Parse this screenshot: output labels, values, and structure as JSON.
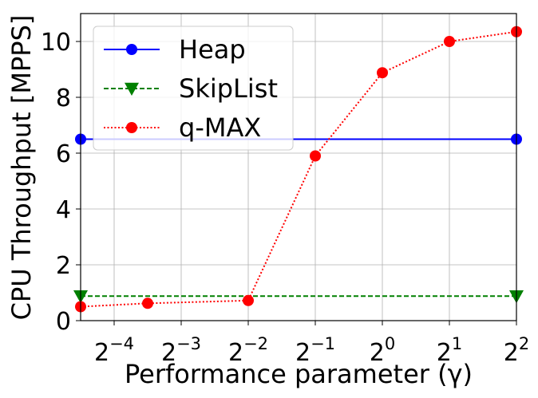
{
  "chart_data": {
    "type": "line",
    "title": "",
    "xlabel": "Performance parameter (γ)",
    "ylabel": "CPU Throughput [MPPS]",
    "x_scale": "log2",
    "xlim": [
      -4.5,
      2
    ],
    "ylim": [
      0,
      11
    ],
    "grid": true,
    "legend_position": "top-left",
    "x_ticks": [
      {
        "base": "2",
        "exp": "−4",
        "value": -4
      },
      {
        "base": "2",
        "exp": "−3",
        "value": -3
      },
      {
        "base": "2",
        "exp": "−2",
        "value": -2
      },
      {
        "base": "2",
        "exp": "−1",
        "value": -1
      },
      {
        "base": "2",
        "exp": "0",
        "value": 0
      },
      {
        "base": "2",
        "exp": "1",
        "value": 1
      },
      {
        "base": "2",
        "exp": "2",
        "value": 2
      }
    ],
    "y_ticks": [
      {
        "label": "0",
        "value": 0
      },
      {
        "label": "2",
        "value": 2
      },
      {
        "label": "4",
        "value": 4
      },
      {
        "label": "6",
        "value": 6
      },
      {
        "label": "8",
        "value": 8
      },
      {
        "label": "10",
        "value": 10
      }
    ],
    "series": [
      {
        "name": "Heap",
        "color": "#0000ff",
        "line": "solid",
        "marker": "circle",
        "x": [
          -4.5,
          2
        ],
        "y": [
          6.5,
          6.5
        ]
      },
      {
        "name": "SkipList",
        "color": "#008000",
        "line": "dashed",
        "marker": "triangle-down",
        "x": [
          -4.5,
          2
        ],
        "y": [
          0.88,
          0.88
        ]
      },
      {
        "name": "q-MAX",
        "color": "#ff0000",
        "line": "dotted",
        "marker": "circle",
        "x": [
          -4.5,
          -3.5,
          -2,
          -1,
          0,
          1,
          2
        ],
        "y": [
          0.5,
          0.62,
          0.72,
          5.9,
          8.88,
          10.0,
          10.35
        ]
      }
    ]
  }
}
